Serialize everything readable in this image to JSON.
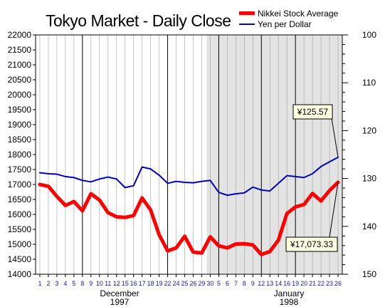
{
  "chart_data": {
    "type": "line",
    "title": "Tokyo Market - Daily Close",
    "x": [
      "1",
      "2",
      "3",
      "4",
      "5",
      "8",
      "9",
      "10",
      "11",
      "12",
      "15",
      "16",
      "17",
      "18",
      "19",
      "22",
      "24",
      "25",
      "26",
      "29",
      "30",
      "5",
      "6",
      "7",
      "8",
      "9",
      "12",
      "13",
      "14",
      "16",
      "19",
      "20",
      "21",
      "22",
      "23",
      "26"
    ],
    "month_labels": [
      {
        "month": "December",
        "year": "1997"
      },
      {
        "month": "January",
        "year": "1998"
      }
    ],
    "series": [
      {
        "name": "Nikkei Stock Average",
        "axis": "left",
        "color": "#ff0000",
        "values": [
          17000,
          16940,
          16600,
          16300,
          16430,
          16120,
          16690,
          16480,
          16060,
          15920,
          15900,
          15960,
          16550,
          16150,
          15320,
          14780,
          14880,
          15270,
          14740,
          14710,
          15250,
          14950,
          14880,
          15010,
          15020,
          14980,
          14660,
          14760,
          15140,
          16030,
          16250,
          16330,
          16700,
          16450,
          16800,
          17073.33
        ]
      },
      {
        "name": "Yen per Dollar",
        "axis": "right",
        "color": "#0000c0",
        "values": [
          128.8,
          129.0,
          129.1,
          129.6,
          129.8,
          130.4,
          130.7,
          130.1,
          129.7,
          130.1,
          131.9,
          131.5,
          127.6,
          128.0,
          129.3,
          131.0,
          130.6,
          130.8,
          130.9,
          130.6,
          130.4,
          132.9,
          133.5,
          133.2,
          133.0,
          131.8,
          132.4,
          132.6,
          131.0,
          129.4,
          129.6,
          129.8,
          129.0,
          127.5,
          126.5,
          125.57
        ]
      }
    ],
    "left_axis": {
      "ylim": [
        14000,
        22000
      ],
      "ticks": [
        "22000",
        "21500",
        "21000",
        "20500",
        "20000",
        "19500",
        "19000",
        "18500",
        "18000",
        "17500",
        "17000",
        "16500",
        "16000",
        "15500",
        "15000",
        "14500",
        "14000"
      ]
    },
    "right_axis": {
      "ylim": [
        100,
        150
      ],
      "inverted": true,
      "ticks": [
        "100",
        "110",
        "120",
        "130",
        "140",
        "150"
      ]
    },
    "annotations": [
      {
        "text": "¥125.57",
        "series": "Yen per Dollar",
        "index": 35
      },
      {
        "text": "¥17,073.33",
        "series": "Nikkei Stock Average",
        "index": 35
      }
    ],
    "shaded_region": {
      "from_index": 21,
      "to_index": 35,
      "color": "#e3e3e3"
    },
    "grid": true,
    "legend_position": "top-right",
    "colors": {
      "nikkei": "#ff0000",
      "yen": "#0000c0",
      "grid_minor": "#a0a0a0",
      "grid_major": "#000000",
      "shade": "#e3e3e3",
      "callout_fill": "#fffde0",
      "xtick": "#1a1aa6"
    }
  }
}
